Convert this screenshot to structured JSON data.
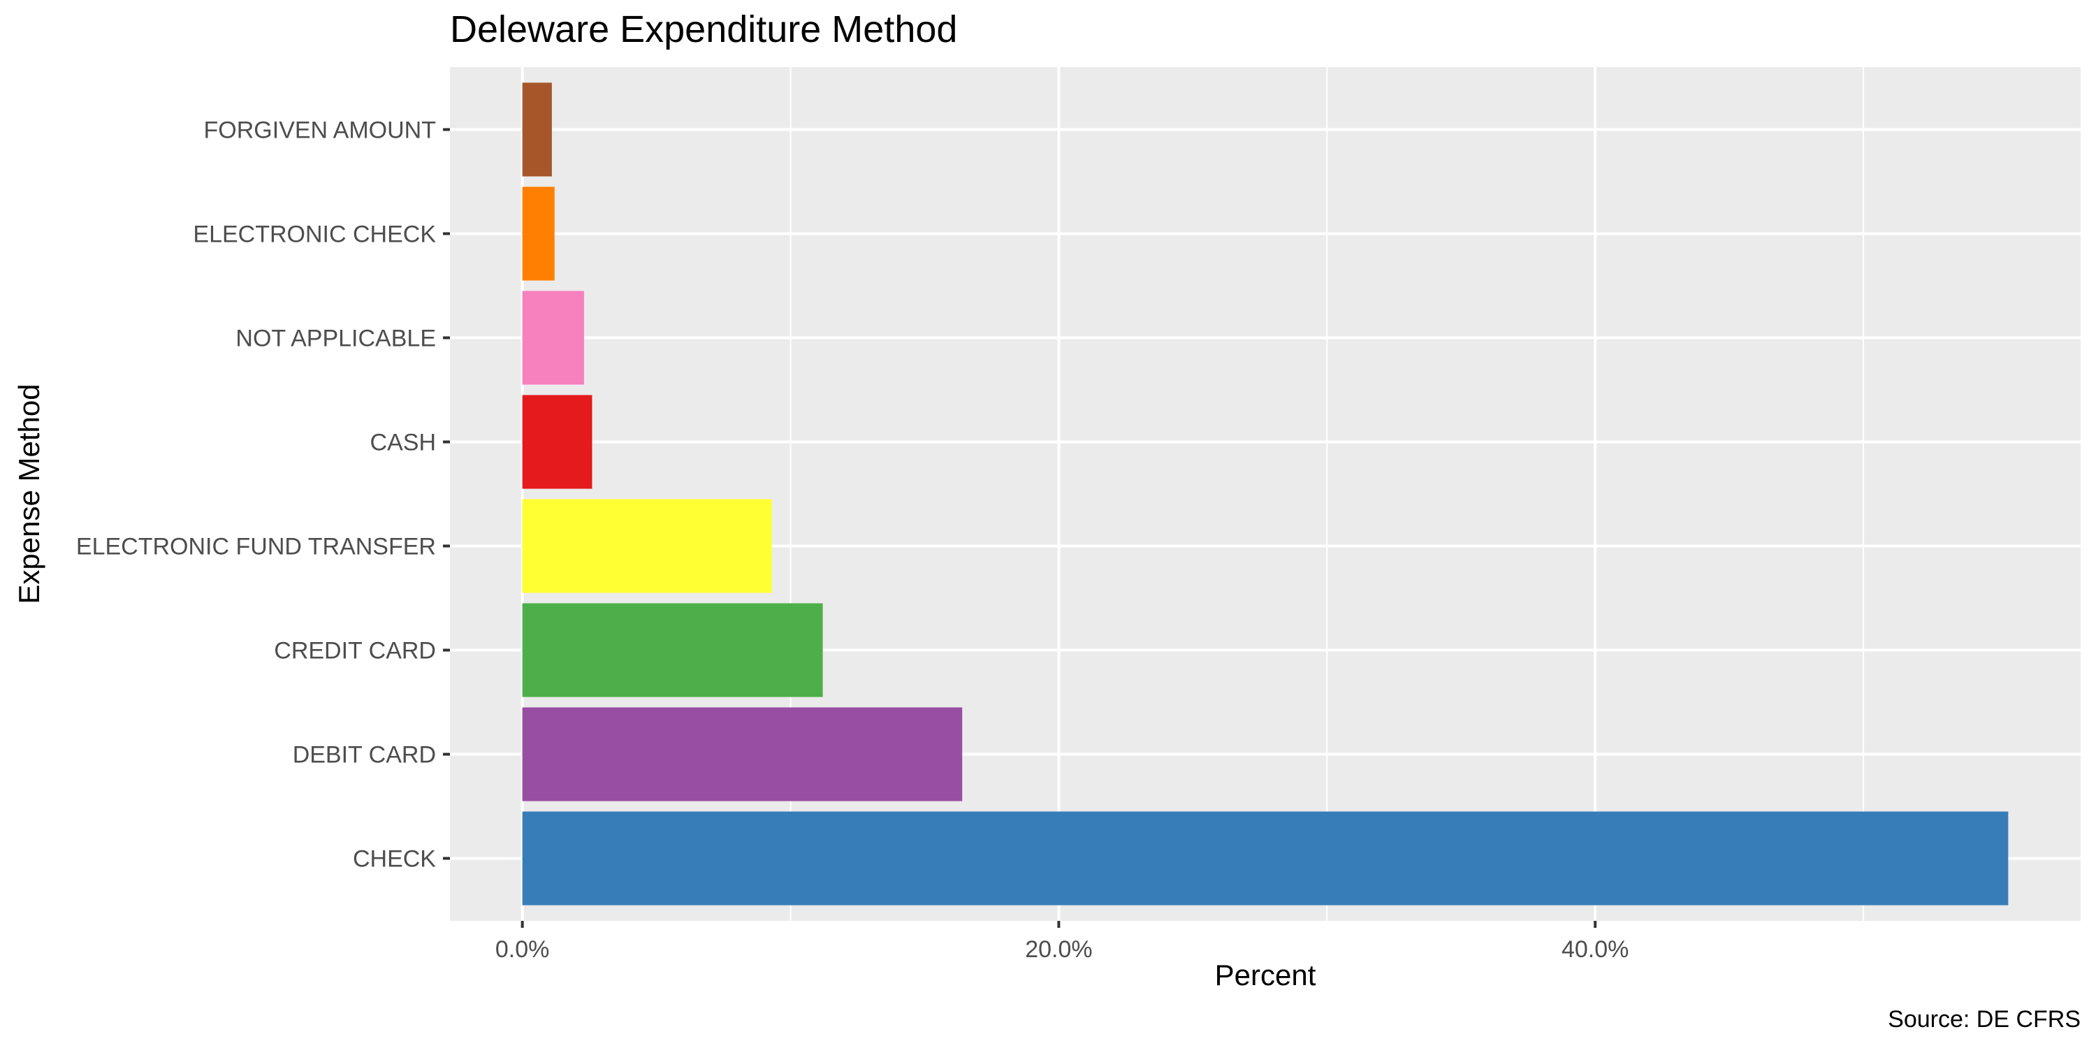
{
  "chart_data": {
    "type": "bar",
    "orientation": "horizontal",
    "title": "Deleware Expenditure Method",
    "xlabel": "Percent",
    "ylabel": "Expense Method",
    "caption": "Source: DE CFRS",
    "categories": [
      "CHECK",
      "DEBIT CARD",
      "CREDIT CARD",
      "ELECTRONIC FUND TRANSFER",
      "CASH",
      "NOT APPLICABLE",
      "ELECTRONIC CHECK",
      "FORGIVEN AMOUNT"
    ],
    "values": [
      0.554,
      0.164,
      0.112,
      0.093,
      0.026,
      0.023,
      0.012,
      0.011
    ],
    "colors": [
      "#377EB8",
      "#984EA3",
      "#4DAF4A",
      "#FFFF33",
      "#E41A1C",
      "#F781BF",
      "#FF7F00",
      "#A65628"
    ],
    "xlim": [
      -0.027,
      0.581
    ],
    "x_ticks": [
      0.0,
      0.2,
      0.4
    ],
    "x_tick_labels": [
      "0.0%",
      "20.0%",
      "40.0%"
    ],
    "x_minor_ticks": [
      0.1,
      0.3,
      0.5
    ],
    "panel_background": "#EBEBEB",
    "grid": true,
    "legend": "none"
  }
}
